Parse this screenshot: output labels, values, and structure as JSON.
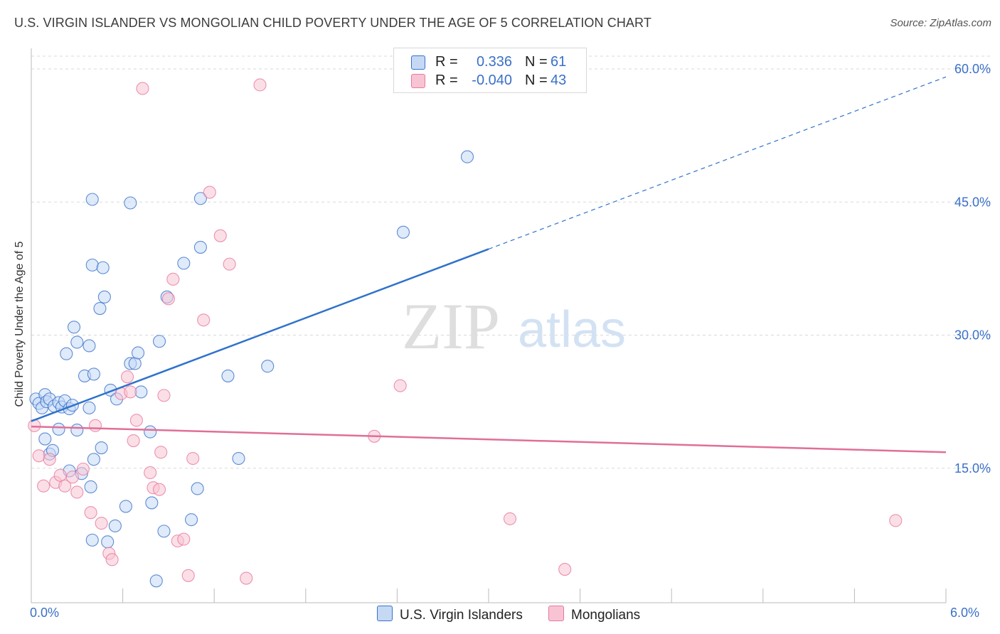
{
  "title": "U.S. VIRGIN ISLANDER VS MONGOLIAN CHILD POVERTY UNDER THE AGE OF 5 CORRELATION CHART",
  "source": "Source: ZipAtlas.com",
  "watermark": {
    "zip": "ZIP",
    "atlas": "atlas"
  },
  "colors": {
    "blue": "#3a70c8",
    "blue_fill": "#c5d9f5",
    "blue_line": "#2f72cc",
    "pink": "#e8789e",
    "pink_fill": "#f8c4d4",
    "pink_line": "#e06f98",
    "grid": "#d9d9d9",
    "axis_text": "#3a70c8"
  },
  "legend": [
    {
      "r_label": "R =",
      "r_value": "0.336",
      "n_label": "N =",
      "n_value": "61"
    },
    {
      "r_label": "R =",
      "r_value": "-0.040",
      "n_label": "N =",
      "n_value": "43"
    }
  ],
  "chart_data": {
    "type": "scatter",
    "ylabel": "Child Poverty Under the Age of 5",
    "xlim": [
      0,
      6
    ],
    "ylim": [
      0,
      60
    ],
    "x_tick_labels": [
      "0.0%",
      "6.0%"
    ],
    "y_ticks": [
      15,
      30,
      45,
      60
    ],
    "y_tick_labels": [
      "15.0%",
      "30.0%",
      "45.0%",
      "60.0%"
    ],
    "grid": true,
    "legend_position": "top-center",
    "series": [
      {
        "name": "U.S. Virgin Islanders",
        "color": "blue",
        "trend": {
          "x": [
            0,
            3.0
          ],
          "y": [
            20.3,
            39.7
          ],
          "dashed_to": [
            6.0,
            59.1
          ]
        },
        "points": [
          [
            0.03,
            22.8
          ],
          [
            0.05,
            22.3
          ],
          [
            0.07,
            21.8
          ],
          [
            0.09,
            23.3
          ],
          [
            0.1,
            22.5
          ],
          [
            0.12,
            22.8
          ],
          [
            0.15,
            22.0
          ],
          [
            0.18,
            22.4
          ],
          [
            0.2,
            21.9
          ],
          [
            0.22,
            22.6
          ],
          [
            0.25,
            21.7
          ],
          [
            0.27,
            22.1
          ],
          [
            0.38,
            21.8
          ],
          [
            0.09,
            18.3
          ],
          [
            0.12,
            16.6
          ],
          [
            0.14,
            17.0
          ],
          [
            0.18,
            19.4
          ],
          [
            0.23,
            27.9
          ],
          [
            0.28,
            30.9
          ],
          [
            0.3,
            29.2
          ],
          [
            0.35,
            25.4
          ],
          [
            0.38,
            28.8
          ],
          [
            0.41,
            25.6
          ],
          [
            0.45,
            33.0
          ],
          [
            0.48,
            34.3
          ],
          [
            0.52,
            23.8
          ],
          [
            0.56,
            22.8
          ],
          [
            0.65,
            26.8
          ],
          [
            0.68,
            26.8
          ],
          [
            0.72,
            23.6
          ],
          [
            0.7,
            28.0
          ],
          [
            0.84,
            29.3
          ],
          [
            0.89,
            34.3
          ],
          [
            1.0,
            38.1
          ],
          [
            1.11,
            45.4
          ],
          [
            1.11,
            39.9
          ],
          [
            0.4,
            37.9
          ],
          [
            0.47,
            37.6
          ],
          [
            0.4,
            45.3
          ],
          [
            0.65,
            44.9
          ],
          [
            1.29,
            25.4
          ],
          [
            1.55,
            26.5
          ],
          [
            2.44,
            41.6
          ],
          [
            2.86,
            50.1
          ],
          [
            0.25,
            14.7
          ],
          [
            0.3,
            19.3
          ],
          [
            0.33,
            14.4
          ],
          [
            0.39,
            12.9
          ],
          [
            0.41,
            16.0
          ],
          [
            0.46,
            17.3
          ],
          [
            0.5,
            6.7
          ],
          [
            0.55,
            8.5
          ],
          [
            0.62,
            10.7
          ],
          [
            0.78,
            19.1
          ],
          [
            0.79,
            11.1
          ],
          [
            0.87,
            7.9
          ],
          [
            1.05,
            9.2
          ],
          [
            1.09,
            12.7
          ],
          [
            1.36,
            16.1
          ],
          [
            0.82,
            2.3
          ],
          [
            0.4,
            6.9
          ]
        ]
      },
      {
        "name": "Mongolians",
        "color": "pink",
        "trend": {
          "x": [
            0,
            6.0
          ],
          "y": [
            19.7,
            16.8
          ]
        },
        "points": [
          [
            0.02,
            19.8
          ],
          [
            0.05,
            16.4
          ],
          [
            0.08,
            13.0
          ],
          [
            0.12,
            16.0
          ],
          [
            0.16,
            13.4
          ],
          [
            0.19,
            14.2
          ],
          [
            0.22,
            13.0
          ],
          [
            0.27,
            14.0
          ],
          [
            0.3,
            12.3
          ],
          [
            0.34,
            14.9
          ],
          [
            0.39,
            10.0
          ],
          [
            0.42,
            19.8
          ],
          [
            0.46,
            8.8
          ],
          [
            0.51,
            5.4
          ],
          [
            0.53,
            4.7
          ],
          [
            0.59,
            23.4
          ],
          [
            0.63,
            25.3
          ],
          [
            0.65,
            23.6
          ],
          [
            0.67,
            18.1
          ],
          [
            0.69,
            20.4
          ],
          [
            0.78,
            14.5
          ],
          [
            0.8,
            12.8
          ],
          [
            0.85,
            16.8
          ],
          [
            0.87,
            23.2
          ],
          [
            0.9,
            34.1
          ],
          [
            0.93,
            36.3
          ],
          [
            0.96,
            6.8
          ],
          [
            1.0,
            7.0
          ],
          [
            1.03,
            2.9
          ],
          [
            1.06,
            16.1
          ],
          [
            1.13,
            31.7
          ],
          [
            1.17,
            46.1
          ],
          [
            1.24,
            41.2
          ],
          [
            1.3,
            38.0
          ],
          [
            1.41,
            2.6
          ],
          [
            1.5,
            58.2
          ],
          [
            0.73,
            57.8
          ],
          [
            2.25,
            18.6
          ],
          [
            2.42,
            24.3
          ],
          [
            3.14,
            9.3
          ],
          [
            3.5,
            3.6
          ],
          [
            5.67,
            9.1
          ],
          [
            0.84,
            12.6
          ]
        ]
      }
    ]
  }
}
